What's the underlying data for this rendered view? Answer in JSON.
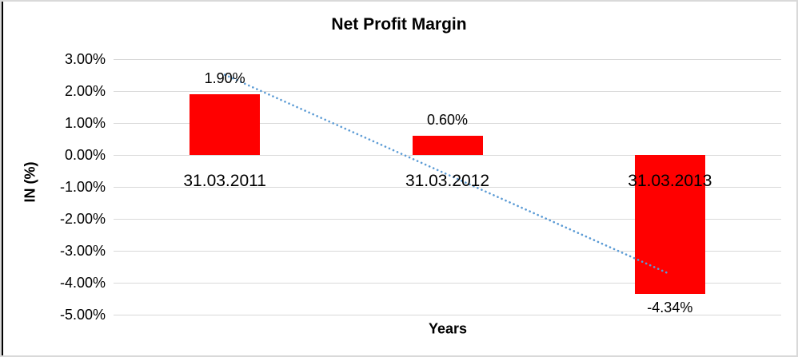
{
  "chart_data": {
    "type": "bar",
    "title": "Net Profit Margin",
    "xlabel": "Years",
    "ylabel": "IN (%)",
    "categories": [
      "31.03.2011",
      "31.03.2012",
      "31.03.2013"
    ],
    "values": [
      1.9,
      0.6,
      -4.34
    ],
    "data_labels": [
      "1.90%",
      "0.60%",
      "-4.34%"
    ],
    "y_ticks": [
      {
        "value": 3,
        "label": "3.00%"
      },
      {
        "value": 2,
        "label": "2.00%"
      },
      {
        "value": 1,
        "label": "1.00%"
      },
      {
        "value": 0,
        "label": "0.00%"
      },
      {
        "value": -1,
        "label": "-1.00%"
      },
      {
        "value": -2,
        "label": "-2.00%"
      },
      {
        "value": -3,
        "label": "-3.00%"
      },
      {
        "value": -4,
        "label": "-4.00%"
      },
      {
        "value": -5,
        "label": "-5.00%"
      }
    ],
    "ylim": [
      -5,
      3
    ],
    "grid": true,
    "legend": "none",
    "bar_color": "#ff0000",
    "gridline_color": "#d9d9d9",
    "text_color": "#000000",
    "trendline": {
      "type": "linear",
      "style": "dotted",
      "color": "#5b9bd5",
      "start_value": 2.51,
      "end_value": -3.73
    }
  }
}
